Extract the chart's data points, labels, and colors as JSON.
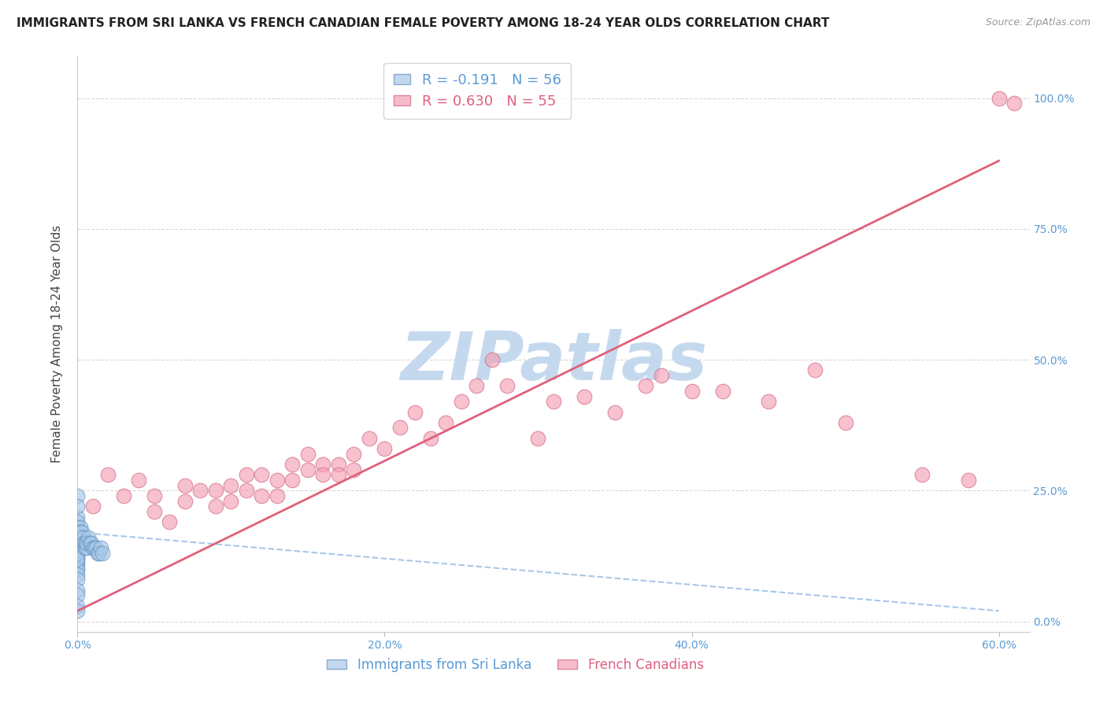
{
  "title": "IMMIGRANTS FROM SRI LANKA VS FRENCH CANADIAN FEMALE POVERTY AMONG 18-24 YEAR OLDS CORRELATION CHART",
  "source": "Source: ZipAtlas.com",
  "ylabel": "Female Poverty Among 18-24 Year Olds",
  "xlim": [
    0.0,
    0.62
  ],
  "ylim": [
    -0.02,
    1.08
  ],
  "y_tick_vals": [
    0.0,
    0.25,
    0.5,
    0.75,
    1.0
  ],
  "x_tick_vals": [
    0.0,
    0.2,
    0.4,
    0.6
  ],
  "blue_R": -0.191,
  "blue_N": 56,
  "pink_R": 0.63,
  "pink_N": 55,
  "blue_scatter_x": [
    0.0,
    0.0,
    0.0,
    0.0,
    0.0,
    0.0,
    0.0,
    0.0,
    0.0,
    0.0,
    0.0,
    0.0,
    0.0,
    0.0,
    0.0,
    0.0,
    0.0,
    0.0,
    0.0,
    0.0,
    0.0,
    0.0,
    0.0,
    0.0,
    0.0,
    0.0,
    0.0,
    0.0,
    0.0,
    0.0,
    0.002,
    0.002,
    0.003,
    0.003,
    0.004,
    0.004,
    0.005,
    0.005,
    0.006,
    0.006,
    0.007,
    0.008,
    0.009,
    0.01,
    0.011,
    0.012,
    0.013,
    0.014,
    0.015,
    0.016,
    0.0,
    0.0,
    0.0,
    0.0,
    0.0,
    0.0
  ],
  "blue_scatter_y": [
    0.2,
    0.19,
    0.18,
    0.17,
    0.16,
    0.16,
    0.15,
    0.15,
    0.14,
    0.14,
    0.13,
    0.13,
    0.12,
    0.12,
    0.11,
    0.11,
    0.1,
    0.1,
    0.09,
    0.08,
    0.17,
    0.16,
    0.16,
    0.15,
    0.15,
    0.14,
    0.14,
    0.13,
    0.13,
    0.12,
    0.18,
    0.17,
    0.17,
    0.16,
    0.16,
    0.15,
    0.15,
    0.14,
    0.14,
    0.15,
    0.16,
    0.15,
    0.15,
    0.14,
    0.14,
    0.14,
    0.13,
    0.13,
    0.14,
    0.13,
    0.24,
    0.22,
    0.06,
    0.05,
    0.03,
    0.02
  ],
  "pink_scatter_x": [
    0.01,
    0.02,
    0.03,
    0.04,
    0.05,
    0.05,
    0.06,
    0.07,
    0.07,
    0.08,
    0.09,
    0.09,
    0.1,
    0.1,
    0.11,
    0.11,
    0.12,
    0.12,
    0.13,
    0.13,
    0.14,
    0.14,
    0.15,
    0.15,
    0.16,
    0.16,
    0.17,
    0.17,
    0.18,
    0.18,
    0.19,
    0.2,
    0.21,
    0.22,
    0.23,
    0.24,
    0.25,
    0.26,
    0.27,
    0.28,
    0.3,
    0.31,
    0.33,
    0.35,
    0.37,
    0.38,
    0.4,
    0.42,
    0.45,
    0.48,
    0.5,
    0.55,
    0.58,
    0.6,
    0.61
  ],
  "pink_scatter_y": [
    0.22,
    0.28,
    0.24,
    0.27,
    0.21,
    0.24,
    0.19,
    0.26,
    0.23,
    0.25,
    0.22,
    0.25,
    0.23,
    0.26,
    0.28,
    0.25,
    0.28,
    0.24,
    0.27,
    0.24,
    0.3,
    0.27,
    0.32,
    0.29,
    0.3,
    0.28,
    0.3,
    0.28,
    0.32,
    0.29,
    0.35,
    0.33,
    0.37,
    0.4,
    0.35,
    0.38,
    0.42,
    0.45,
    0.5,
    0.45,
    0.35,
    0.42,
    0.43,
    0.4,
    0.45,
    0.47,
    0.44,
    0.44,
    0.42,
    0.48,
    0.38,
    0.28,
    0.27,
    1.0,
    0.99
  ],
  "pink_line_x0": 0.0,
  "pink_line_y0": 0.02,
  "pink_line_x1": 0.6,
  "pink_line_y1": 0.88,
  "blue_line_x0": 0.0,
  "blue_line_y0": 0.17,
  "blue_line_x1": 0.6,
  "blue_line_y1": 0.02,
  "title_fontsize": 11,
  "source_fontsize": 9,
  "ylabel_fontsize": 11,
  "tick_fontsize": 10,
  "background_color": "#ffffff",
  "grid_color": "#d8d8d8",
  "watermark_text": "ZIPatlas",
  "watermark_color": "#c5d9ee",
  "tick_color": "#5b9bd5",
  "blue_color": "#a8c8e8",
  "pink_color": "#f4a0b5",
  "blue_edge_color": "#6090c0",
  "pink_edge_color": "#d06080",
  "blue_line_color": "#a8c8e8",
  "pink_line_color": "#e0607a",
  "legend_blue_label": "R = -0.191   N = 56",
  "legend_pink_label": "R = 0.630   N = 55",
  "bottom_legend_blue": "Immigrants from Sri Lanka",
  "bottom_legend_pink": "French Canadians"
}
